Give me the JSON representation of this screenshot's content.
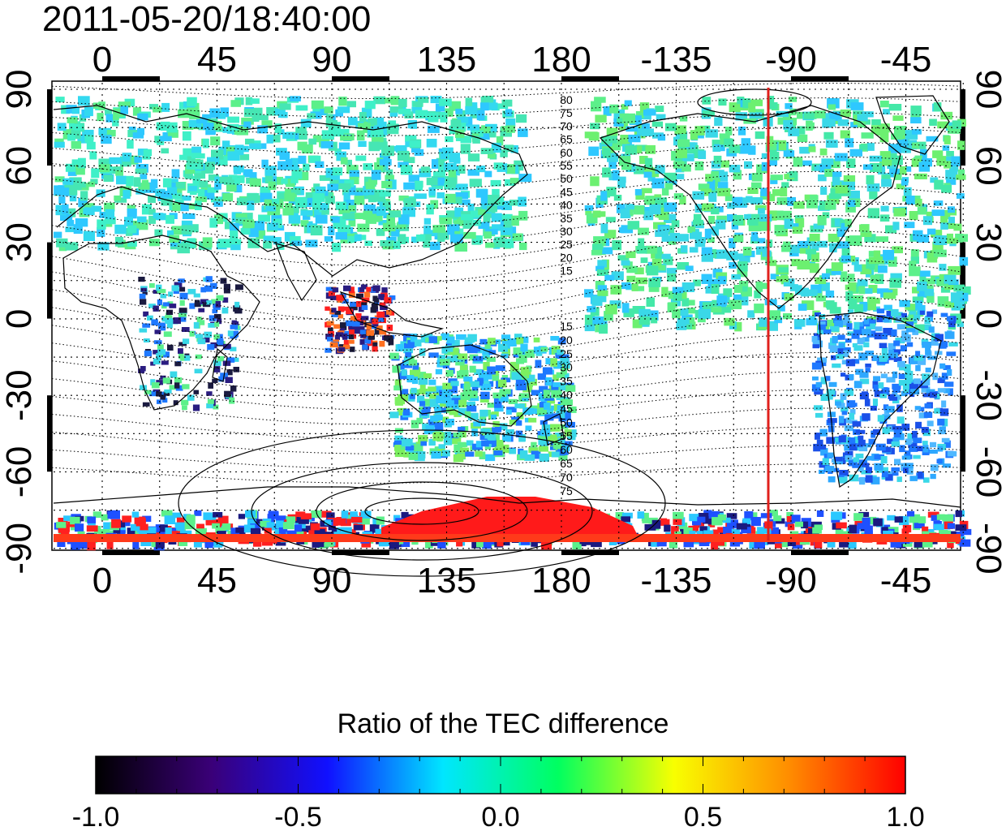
{
  "timestamp": "2011-05-20/18:40:00",
  "map": {
    "longitude_ticks": [
      "0",
      "45",
      "90",
      "135",
      "180",
      "-135",
      "-90",
      "-45"
    ],
    "latitude_ticks_left": [
      "90",
      "60",
      "30",
      "0",
      "-30",
      "-60",
      "-90"
    ],
    "latitude_ticks_right": [
      "90",
      "60",
      "30",
      "0",
      "-30",
      "-60",
      "-90"
    ],
    "contour_labels_north": [
      "80",
      "75",
      "70",
      "65",
      "60",
      "55",
      "50",
      "45",
      "40",
      "35",
      "30",
      "25",
      "20",
      "15"
    ],
    "contour_labels_south": [
      "15",
      "20",
      "25",
      "30",
      "35",
      "40",
      "45",
      "50",
      "55",
      "60",
      "65",
      "70",
      "75"
    ],
    "marker_line_color": "#e0201c",
    "grid_style": "dotted"
  },
  "colorbar": {
    "title": "Ratio of the TEC difference",
    "tick_labels": [
      "-1.0",
      "-0.5",
      "0.0",
      "0.5",
      "1.0"
    ],
    "colormap": [
      "#000000",
      "#3a0078",
      "#1010ff",
      "#00e6ff",
      "#00ff60",
      "#f8ff00",
      "#ff8c00",
      "#ff0000"
    ]
  }
}
